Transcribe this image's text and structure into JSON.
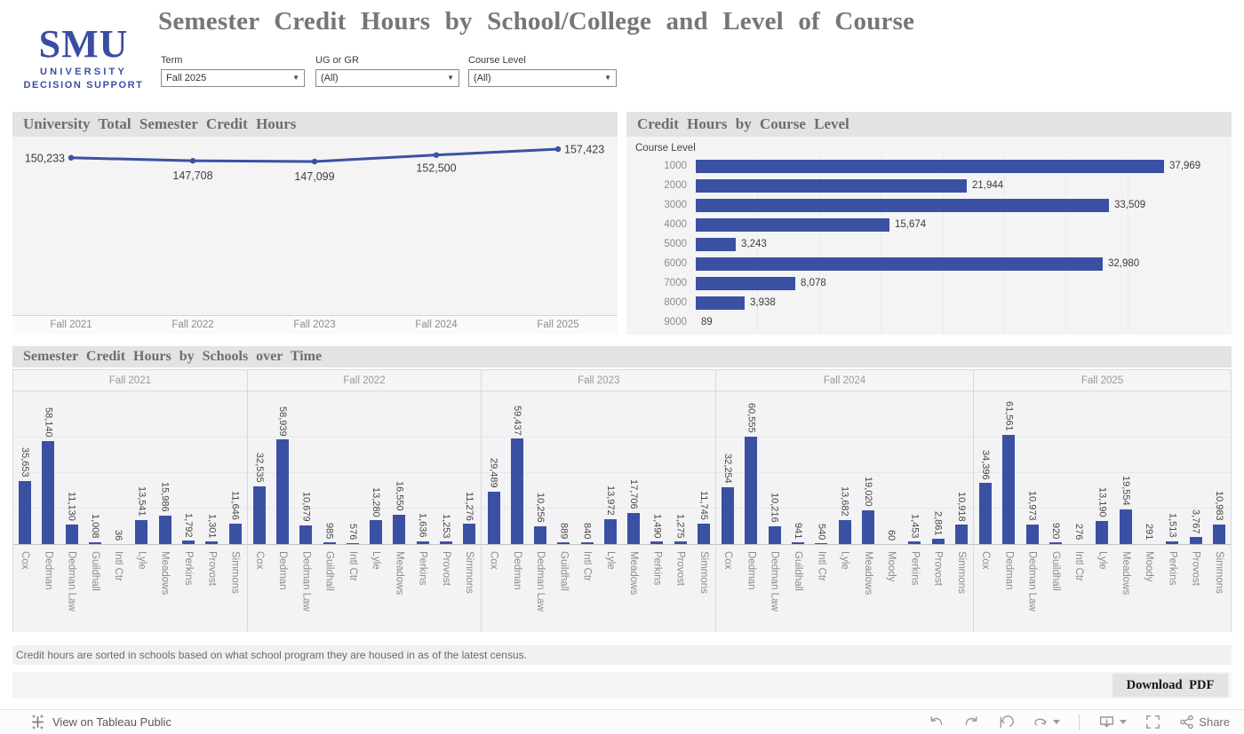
{
  "header": {
    "logo": {
      "acronym": "SMU",
      "sub1": "UNIVERSITY",
      "sub2": "DECISION SUPPORT"
    },
    "title": "Semester Credit Hours by School/College and Level of Course",
    "filters": [
      {
        "label": "Term",
        "value": "Fall 2025"
      },
      {
        "label": "UG or GR",
        "value": "(All)"
      },
      {
        "label": "Course Level",
        "value": "(All)"
      }
    ]
  },
  "note": "Credit hours are sorted in schools based on what school program they are housed in as of the latest census.",
  "download_label": "Download PDF",
  "statusbar": {
    "view_label": "View on Tableau Public",
    "share_label": "Share"
  },
  "colors": {
    "bar_blue": "#3a51a3",
    "smu_blue": "#3a4da3",
    "title_gray": "#767676"
  },
  "chart_data": [
    {
      "type": "line",
      "title": "University Total Semester Credit Hours",
      "x": [
        "Fall 2021",
        "Fall 2022",
        "Fall 2023",
        "Fall 2024",
        "Fall 2025"
      ],
      "values": [
        150233,
        147708,
        147099,
        152500,
        157423
      ],
      "ylim": [
        140000,
        160000
      ],
      "grid": false,
      "legend": "none",
      "color": "#3a51a3"
    },
    {
      "type": "bar",
      "orientation": "horizontal",
      "title": "Credit Hours by Course Level",
      "axis_label": "Course Level",
      "categories": [
        "1000",
        "2000",
        "3000",
        "4000",
        "5000",
        "6000",
        "7000",
        "8000",
        "9000"
      ],
      "values": [
        37969,
        21944,
        33509,
        15674,
        3243,
        32980,
        8078,
        3938,
        89
      ],
      "xlim": [
        0,
        40000
      ],
      "legend": "none",
      "color": "#3a51a3"
    },
    {
      "type": "bar",
      "orientation": "vertical",
      "title": "Semester Credit Hours by Schools over Time",
      "ylim": [
        0,
        65000
      ],
      "legend": "none",
      "color": "#3a51a3",
      "facets": [
        {
          "period": "Fall 2021",
          "categories": [
            "Cox",
            "Dedman",
            "Dedman Law",
            "Guildhall",
            "Intl Ctr",
            "Lyle",
            "Meadows",
            "Perkins",
            "Provost",
            "Simmons"
          ],
          "values": [
            35653,
            58140,
            11130,
            1008,
            36,
            13541,
            15986,
            1792,
            1301,
            11646
          ]
        },
        {
          "period": "Fall 2022",
          "categories": [
            "Cox",
            "Dedman",
            "Dedman Law",
            "Guildhall",
            "Intl Ctr",
            "Lyle",
            "Meadows",
            "Perkins",
            "Provost",
            "Simmons"
          ],
          "values": [
            32535,
            58939,
            10679,
            985,
            576,
            13280,
            16550,
            1636,
            1253,
            11276
          ]
        },
        {
          "period": "Fall 2023",
          "categories": [
            "Cox",
            "Dedman",
            "Dedman Law",
            "Guildhall",
            "Intl Ctr",
            "Lyle",
            "Meadows",
            "Perkins",
            "Provost",
            "Simmons"
          ],
          "values": [
            29489,
            59437,
            10256,
            889,
            840,
            13972,
            17706,
            1490,
            1275,
            11745
          ]
        },
        {
          "period": "Fall 2024",
          "categories": [
            "Cox",
            "Dedman",
            "Dedman Law",
            "Guildhall",
            "Intl Ctr",
            "Lyle",
            "Meadows",
            "Moody",
            "Perkins",
            "Provost",
            "Simmons"
          ],
          "values": [
            32254,
            60555,
            10216,
            941,
            540,
            13682,
            19020,
            60,
            1453,
            2861,
            10918
          ]
        },
        {
          "period": "Fall 2025",
          "categories": [
            "Cox",
            "Dedman",
            "Dedman Law",
            "Guildhall",
            "Intl Ctr",
            "Lyle",
            "Meadows",
            "Moody",
            "Perkins",
            "Provost",
            "Simmons"
          ],
          "values": [
            34396,
            61561,
            10973,
            920,
            276,
            13190,
            19554,
            291,
            1513,
            3767,
            10983
          ]
        }
      ]
    }
  ]
}
